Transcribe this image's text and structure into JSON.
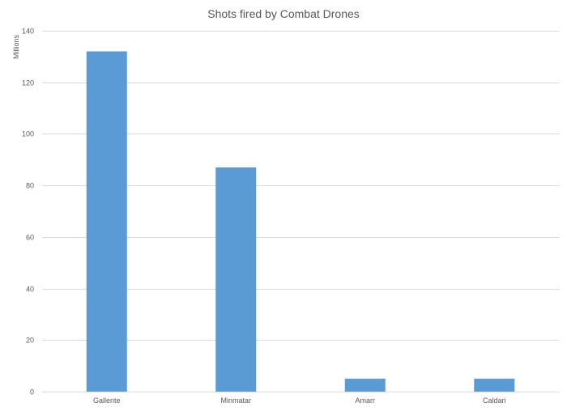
{
  "chart_data": {
    "type": "bar",
    "title": "Shots fired by Combat Drones",
    "ylabel": "Millions",
    "xlabel": "",
    "categories": [
      "Gallente",
      "Minmatar",
      "Amarr",
      "Caldari"
    ],
    "values": [
      132,
      87,
      5,
      5
    ],
    "ylim": [
      0,
      140
    ],
    "yticks": [
      0,
      20,
      40,
      60,
      80,
      100,
      120,
      140
    ],
    "grid": true,
    "legend": "none",
    "bar_color": "#5b9bd5"
  }
}
